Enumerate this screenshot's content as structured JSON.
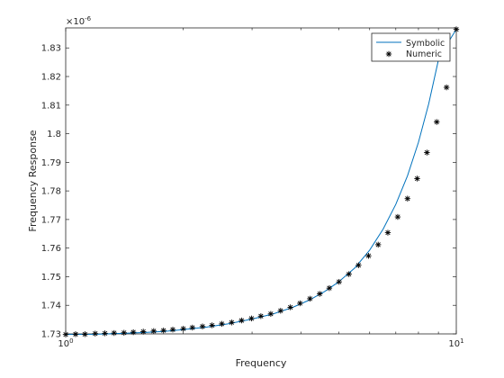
{
  "chart_data": {
    "type": "line",
    "xlabel": "Frequency",
    "ylabel": "Frequency Response",
    "x_scale": "log",
    "xlim": [
      1,
      10
    ],
    "ylim": [
      1.73,
      1.837
    ],
    "y_multiplier_label": "×10",
    "y_multiplier_exponent": "-6",
    "x_ticks": [
      {
        "value": 1,
        "base": "10",
        "exp": "0"
      },
      {
        "value": 10,
        "base": "10",
        "exp": "1"
      }
    ],
    "y_ticks": [
      "1.73",
      "1.74",
      "1.75",
      "1.76",
      "1.77",
      "1.78",
      "1.79",
      "1.8",
      "1.81",
      "1.82",
      "1.83"
    ],
    "legend": {
      "location": "top-right",
      "entries": [
        "Symbolic",
        "Numeric"
      ]
    },
    "line_color": "#0072bd",
    "marker_color": "#000000",
    "series": [
      {
        "name": "Symbolic",
        "style": "line",
        "x": [
          1,
          1.2,
          1.4,
          1.6,
          1.8,
          2,
          2.3,
          2.6,
          3,
          3.4,
          3.8,
          4.2,
          4.6,
          5,
          5.5,
          6,
          6.5,
          7,
          7.5,
          8,
          8.5,
          9,
          9.5,
          10
        ],
        "y": [
          1.7298,
          1.7299,
          1.7302,
          1.7305,
          1.7309,
          1.7315,
          1.7324,
          1.7335,
          1.7352,
          1.737,
          1.7392,
          1.7418,
          1.7448,
          1.7482,
          1.7531,
          1.7593,
          1.7667,
          1.7753,
          1.7853,
          1.797,
          1.8105,
          1.8258,
          1.8316,
          1.8365
        ]
      },
      {
        "name": "Numeric",
        "style": "markers",
        "x": [
          1,
          1.06,
          1.12,
          1.19,
          1.26,
          1.33,
          1.41,
          1.49,
          1.58,
          1.68,
          1.78,
          1.88,
          2,
          2.11,
          2.24,
          2.37,
          2.51,
          2.66,
          2.82,
          2.99,
          3.16,
          3.35,
          3.55,
          3.76,
          3.98,
          4.22,
          4.47,
          4.73,
          5.01,
          5.31,
          5.62,
          5.96,
          6.31,
          6.68,
          7.08,
          7.5,
          7.94,
          8.41,
          8.91,
          9.44,
          10
        ],
        "y": [
          1.7298,
          1.7299,
          1.7299,
          1.7301,
          1.7302,
          1.7303,
          1.7304,
          1.7306,
          1.7308,
          1.731,
          1.7312,
          1.7315,
          1.7318,
          1.7322,
          1.7326,
          1.733,
          1.7335,
          1.734,
          1.7347,
          1.7354,
          1.7362,
          1.737,
          1.7381,
          1.7393,
          1.7407,
          1.7423,
          1.744,
          1.746,
          1.7482,
          1.7509,
          1.754,
          1.7573,
          1.7612,
          1.7654,
          1.7709,
          1.7773,
          1.7843,
          1.7934,
          1.8041,
          1.8162,
          1.8365
        ]
      }
    ]
  }
}
